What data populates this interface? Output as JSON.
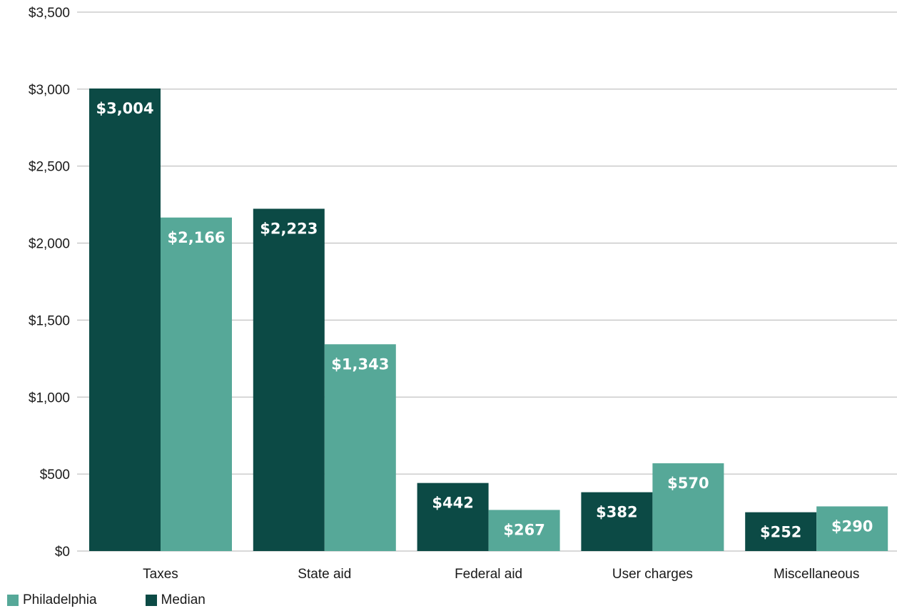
{
  "chart_data": {
    "type": "bar",
    "categories": [
      "Taxes",
      "State aid",
      "Federal aid",
      "User charges",
      "Miscellaneous"
    ],
    "series": [
      {
        "name": "Median",
        "values": [
          3004,
          2223,
          442,
          382,
          252
        ],
        "labels": [
          "$3,004",
          "$2,223",
          "$442",
          "$382",
          "$252"
        ],
        "color": "#0c4a45"
      },
      {
        "name": "Philadelphia",
        "values": [
          2166,
          1343,
          267,
          570,
          290
        ],
        "labels": [
          "$2,166",
          "$1,343",
          "$267",
          "$570",
          "$290"
        ],
        "color": "#56a898"
      }
    ],
    "ylim": [
      0,
      3500
    ],
    "yticks": [
      0,
      500,
      1000,
      1500,
      2000,
      2500,
      3000,
      3500
    ],
    "ytick_labels": [
      "$0",
      "$500",
      "$1,000",
      "$1,500",
      "$2,000",
      "$2,500",
      "$3,000",
      "$3,500"
    ],
    "grid": true,
    "legend_position": "bottom-left",
    "gridline_color": "#b3b3b3"
  },
  "legend": {
    "items": [
      {
        "label": "Philadelphia",
        "color": "#56a898"
      },
      {
        "label": "Median",
        "color": "#0c4a45"
      }
    ]
  }
}
